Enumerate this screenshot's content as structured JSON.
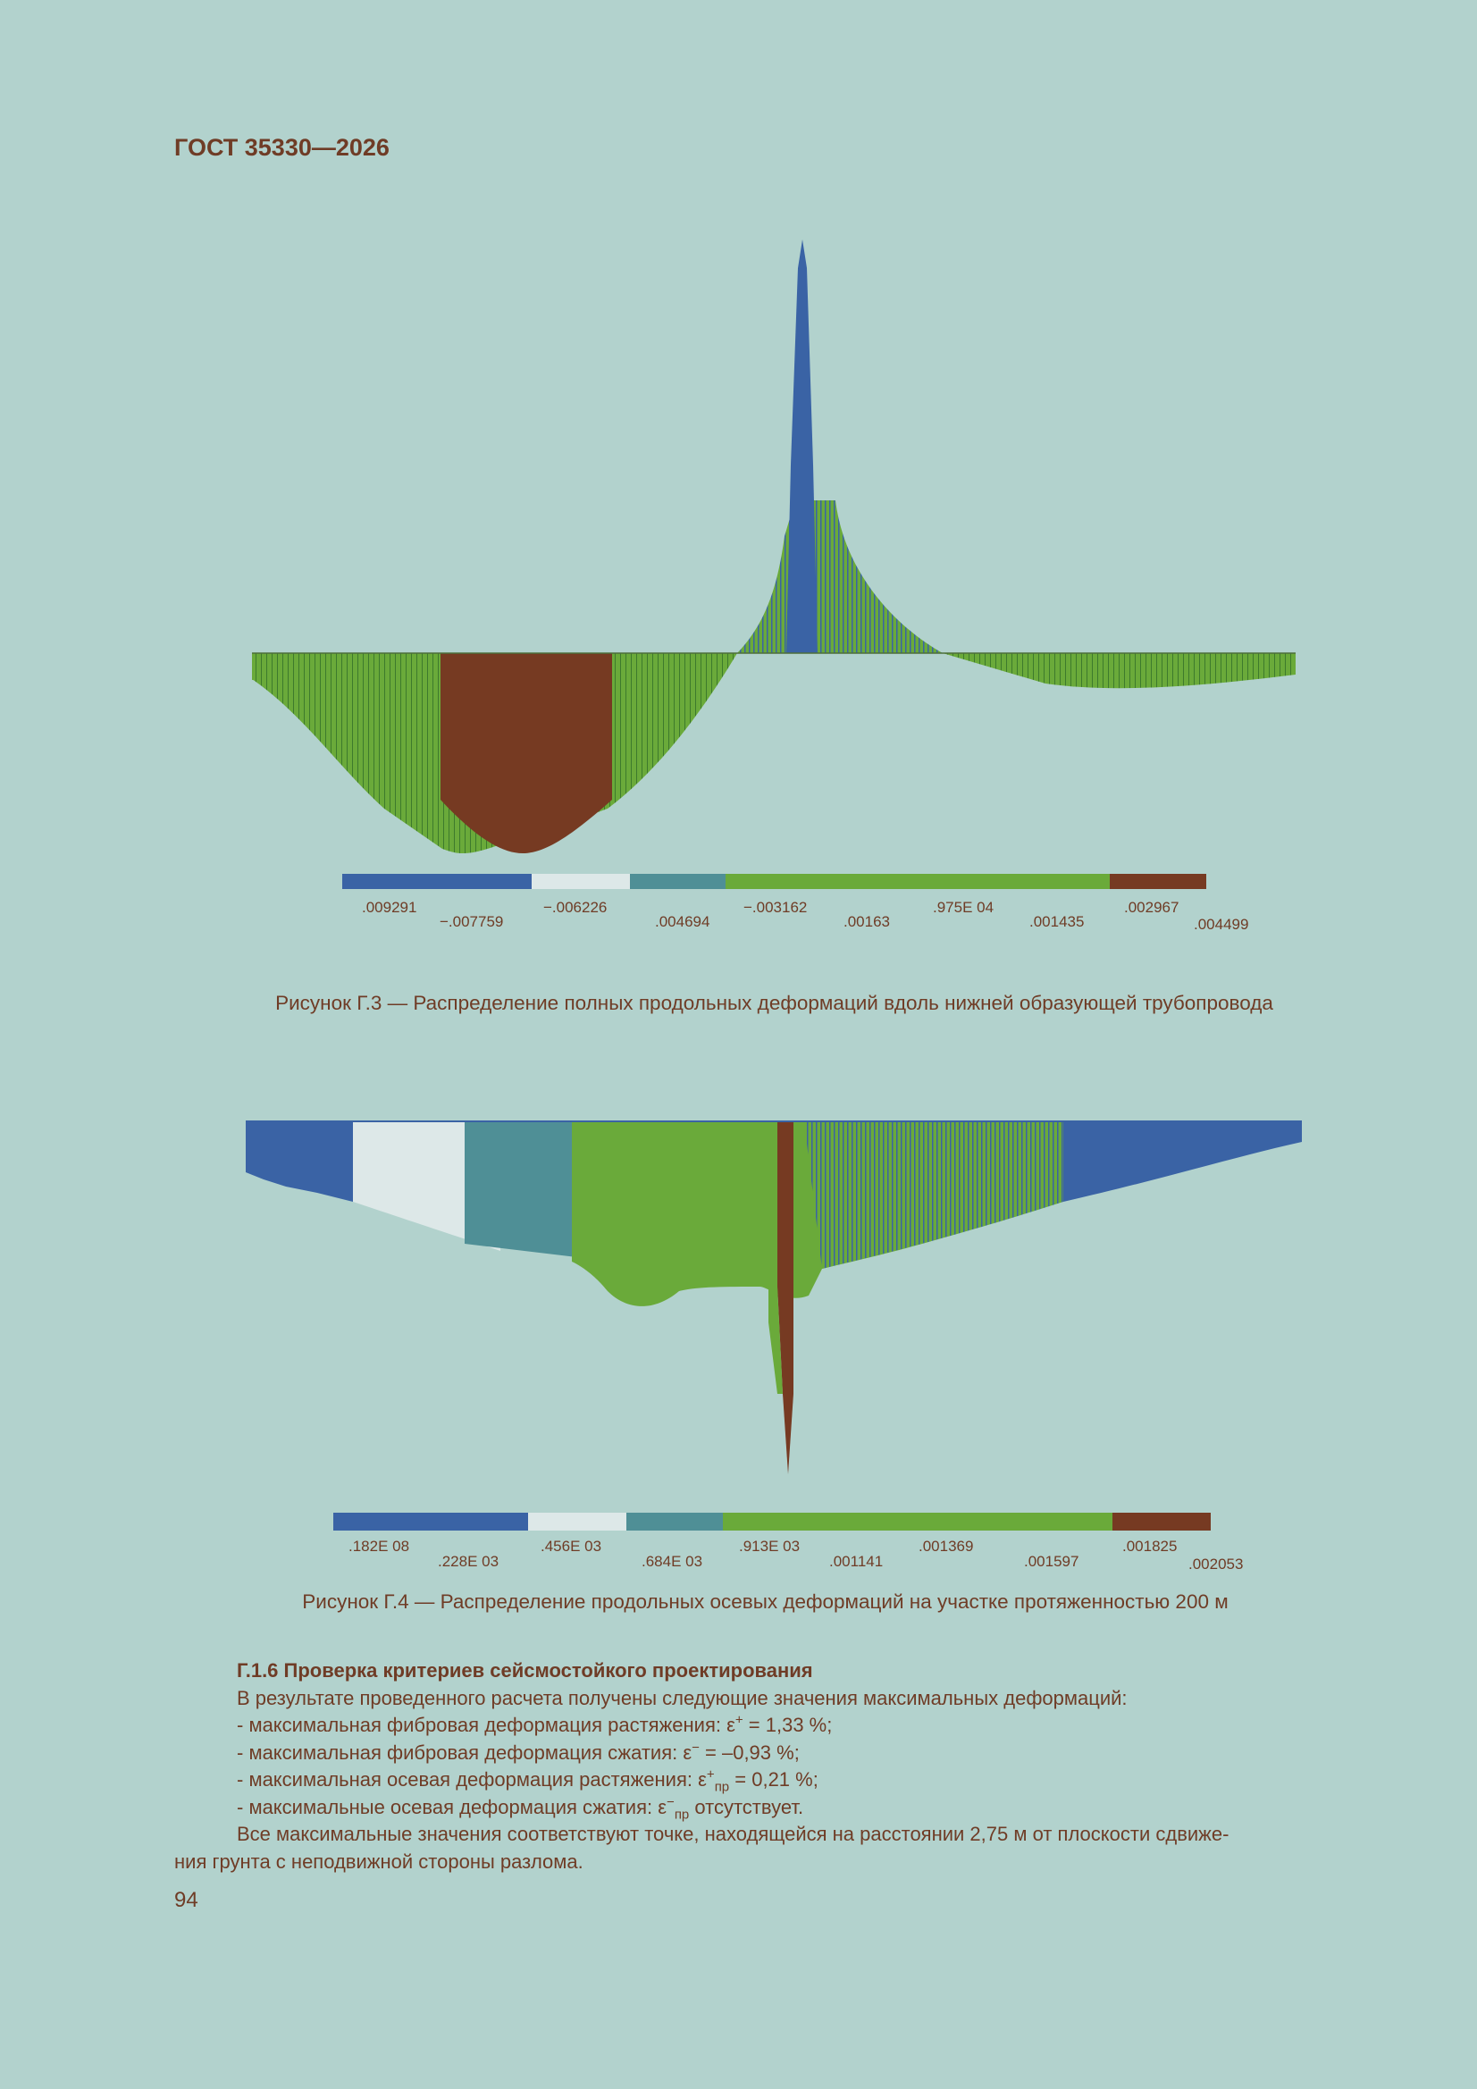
{
  "header": {
    "doc_id": "ГОСТ 35330—2026"
  },
  "figure1": {
    "caption": "Рисунок Г.3 — Распределение полных продольных деформаций вдоль нижней образующей трубопровода",
    "legend_colors": [
      "#3a63a5",
      "#3a63a5",
      "#dde8e8",
      "#4f8f96",
      "#6aaa3a",
      "#6aaa3a",
      "#6aaa3a",
      "#6aaa3a",
      "#763a22"
    ],
    "legend_labels": [
      ".009291",
      "−.007759",
      "−.006226",
      ".004694",
      "−.003162",
      ".00163",
      ".975E 04",
      ".001435",
      ".002967",
      ".004499"
    ]
  },
  "figure2": {
    "caption": "Рисунок Г.4 — Распределение продольных осевых деформаций на участке протяженностью 200 м",
    "legend_colors": [
      "#3a63a5",
      "#3a63a5",
      "#dde8e8",
      "#4f8f96",
      "#6aaa3a",
      "#6aaa3a",
      "#6aaa3a",
      "#6aaa3a",
      "#763a22"
    ],
    "legend_labels": [
      ".182E 08",
      ".228E 03",
      ".456E 03",
      ".684E 03",
      ".913E 03",
      ".001141",
      ".001369",
      ".001597",
      ".001825",
      ".002053"
    ]
  },
  "section": {
    "heading": "Г.1.6 Проверка критериев сейсмостойкого проектирования",
    "intro": "В результате проведенного расчета получены следующие значения максимальных деформаций:",
    "item1_text": "- максимальная фибровая деформация растяжения: ε",
    "item1_sup": "+",
    "item1_value": " = 1,33 %;",
    "item2_text": "- максимальная фибровая деформация сжатия: ε",
    "item2_sup": "−",
    "item2_value": " = –0,93 %;",
    "item3_text": "- максимальная осевая деформация растяжения: ε",
    "item3_sup": "+",
    "item3_sub": "пр",
    "item3_value": " = 0,21 %;",
    "item4_text": "- максимальные осевая деформация сжатия: ε",
    "item4_sup": "−",
    "item4_sub": "пр",
    "item4_value": " отсутствует.",
    "conclusion_line1": "Все максимальные значения соответствуют точке, находящейся на расстоянии 2,75 м от плоскости сдвиже-",
    "conclusion_line2": "ния грунта с неподвижной стороны разлома."
  },
  "page_number": "94"
}
